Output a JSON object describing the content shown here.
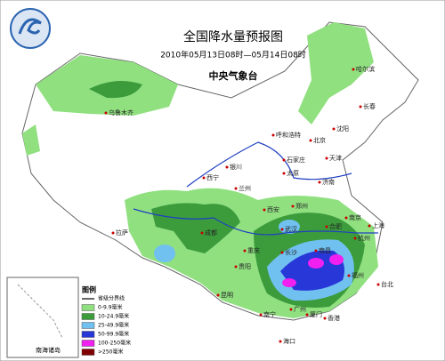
{
  "header": {
    "title": "全国降水量预报图",
    "subtitle": "2010年05月13日08时—05月14日08时",
    "agency": "中央气象台"
  },
  "cities": [
    "哈尔滨",
    "长春",
    "沈阳",
    "北京",
    "天津",
    "石家庄",
    "济南",
    "呼和浩特",
    "太原",
    "银川",
    "兰州",
    "西宁",
    "郑州",
    "西安",
    "南京",
    "合肥",
    "上海",
    "杭州",
    "武汉",
    "成都",
    "重庆",
    "长沙",
    "南昌",
    "贵阳",
    "福州",
    "台北",
    "昆明",
    "南宁",
    "广州",
    "厦门",
    "香港",
    "海口",
    "拉萨",
    "乌鲁木齐"
  ],
  "legend": {
    "title": "图例",
    "boundary": "省级分界线",
    "items": [
      {
        "label": "0-9.9毫米",
        "color": "#90e080"
      },
      {
        "label": "10-24.9毫米",
        "color": "#3c9c3c"
      },
      {
        "label": "25-49.9毫米",
        "color": "#70c0f0"
      },
      {
        "label": "50-99.9毫米",
        "color": "#2838d8"
      },
      {
        "label": "100-250毫米",
        "color": "#f020f0"
      },
      {
        "label": ">250毫米",
        "color": "#800000"
      }
    ]
  },
  "inset": {
    "label": "南海诸岛"
  }
}
